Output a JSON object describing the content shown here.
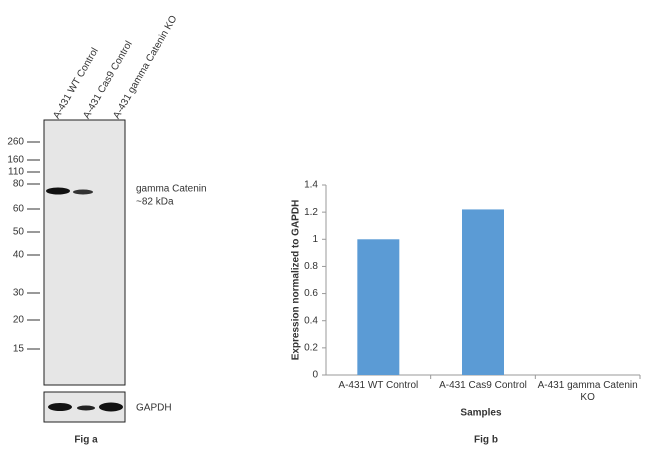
{
  "blot": {
    "lanes": [
      "A-431 WT Control",
      "A-431 Cas9 Control",
      "A-431 gamma Catenin KO"
    ],
    "markers": [
      "260",
      "160",
      "110",
      "80",
      "60",
      "50",
      "40",
      "30",
      "20",
      "15"
    ],
    "target_label": "gamma Catenin",
    "target_size": "~82 kDa",
    "loading_label": "GAPDH",
    "caption": "Fig a"
  },
  "chart_data": {
    "type": "bar",
    "caption": "Fig b",
    "x_label": "Samples",
    "y_label": "Expression normalized to GAPDH",
    "categories": [
      "A-431 WT Control",
      "A-431 Cas9 Control",
      "A-431 gamma Catenin KO"
    ],
    "values": [
      1.0,
      1.22,
      0
    ],
    "color": "#5b9bd5",
    "ylim": [
      0,
      1.4
    ],
    "yticks": [
      0,
      0.2,
      0.4,
      0.6,
      0.8,
      1,
      1.2,
      1.4
    ]
  }
}
